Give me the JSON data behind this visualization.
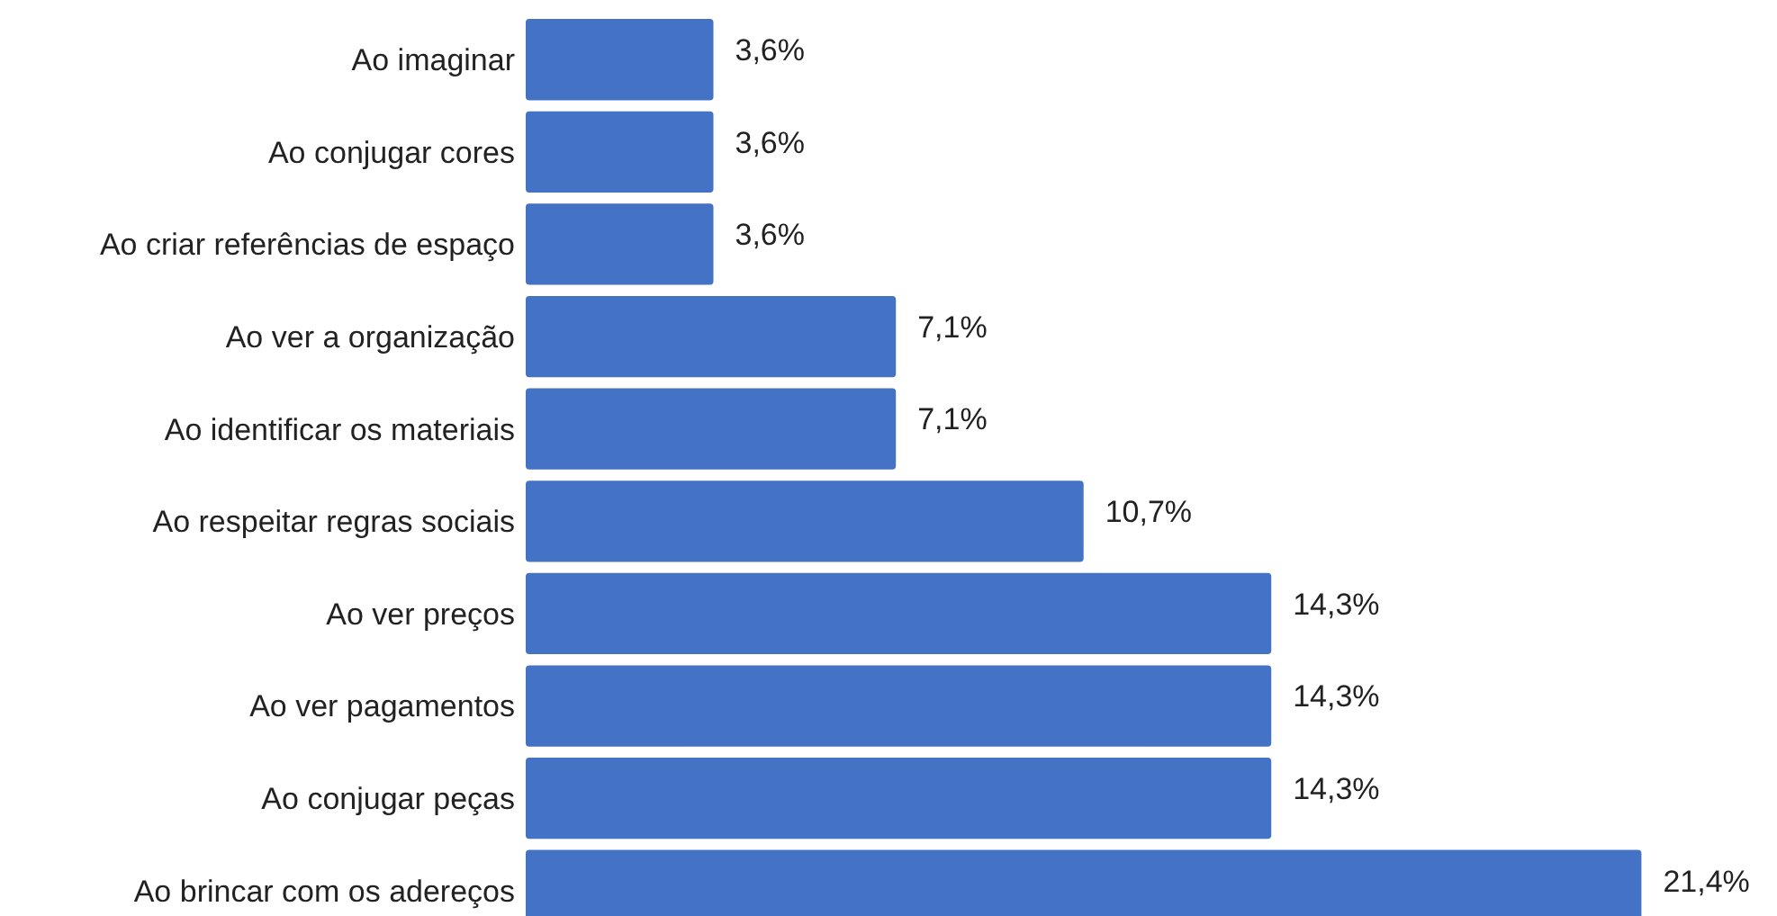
{
  "chart_data": {
    "type": "bar",
    "orientation": "horizontal",
    "categories": [
      "Ao imaginar",
      "Ao conjugar cores",
      "Ao criar referências de espaço",
      "Ao ver a organização",
      "Ao identificar os materiais",
      "Ao respeitar regras sociais",
      "Ao ver preços",
      "Ao ver pagamentos",
      "Ao conjugar peças",
      "Ao brincar com os adereços"
    ],
    "values": [
      3.6,
      3.6,
      3.6,
      7.1,
      7.1,
      10.7,
      14.3,
      14.3,
      14.3,
      21.4
    ],
    "value_labels": [
      "3,6%",
      "3,6%",
      "3,6%",
      "7,1%",
      "7,1%",
      "10,7%",
      "14,3%",
      "14,3%",
      "14,3%",
      "21,4%"
    ],
    "color": "#4472c4",
    "xlim": [
      0,
      24
    ]
  }
}
